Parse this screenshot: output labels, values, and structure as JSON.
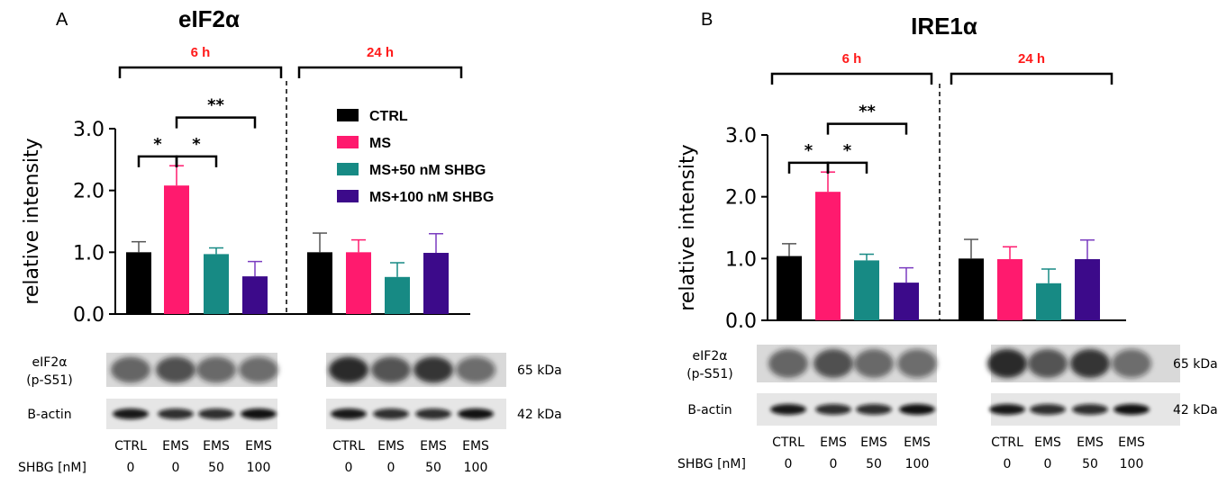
{
  "legend": [
    {
      "label": "CTRL",
      "color": "#000000"
    },
    {
      "label": "MS",
      "color": "#ff1a6e"
    },
    {
      "label": "MS+50 nM SHBG",
      "color": "#178a84"
    },
    {
      "label": "MS+100 nM SHBG",
      "color": "#3c0a8a"
    }
  ],
  "error_colors": [
    "#555555",
    "#ff1a6e",
    "#178a84",
    "#7a3cc0"
  ],
  "time_color": "#ff1a1a",
  "chart_data": [
    {
      "type": "bar",
      "panel_letter": "A",
      "title": "eIF2α",
      "ylabel": "relative intensity",
      "ylim": [
        0,
        3
      ],
      "yticks": [
        "0.0",
        "1.0",
        "2.0",
        "3.0"
      ],
      "groups": [
        "6 h",
        "24 h"
      ],
      "series": [
        {
          "name": "CTRL",
          "values": [
            1.0,
            1.0
          ],
          "errors": [
            0.17,
            0.31
          ]
        },
        {
          "name": "MS",
          "values": [
            2.08,
            1.0
          ],
          "errors": [
            0.32,
            0.2
          ]
        },
        {
          "name": "MS+50 nM SHBG",
          "values": [
            0.97,
            0.6
          ],
          "errors": [
            0.1,
            0.23
          ]
        },
        {
          "name": "MS+100 nM SHBG",
          "values": [
            0.61,
            0.99
          ],
          "errors": [
            0.24,
            0.31
          ]
        }
      ],
      "significance": [
        {
          "from": 0,
          "to": 1,
          "label": "*"
        },
        {
          "from": 1,
          "to": 2,
          "label": "*"
        },
        {
          "from": 1,
          "to": 3,
          "label": "**"
        }
      ],
      "blot": {
        "rows": [
          {
            "label_line1": "eIF2α",
            "label_line2": "(p-S51)",
            "kda": "65 kDa"
          },
          {
            "label_line1": "B-actin",
            "label_line2": "",
            "kda": "42 kDa"
          }
        ],
        "conditions": [
          "CTRL",
          "EMS",
          "EMS",
          "EMS",
          "CTRL",
          "EMS",
          "EMS",
          "EMS"
        ],
        "shbg_label": "SHBG [nM]",
        "shbg_values": [
          "0",
          "0",
          "50",
          "100",
          "0",
          "0",
          "50",
          "100"
        ]
      }
    },
    {
      "type": "bar",
      "panel_letter": "B",
      "title": "IRE1α",
      "ylabel": "relative intensity",
      "ylim": [
        0,
        3
      ],
      "yticks": [
        "0.0",
        "1.0",
        "2.0",
        "3.0"
      ],
      "groups": [
        "6 h",
        "24 h"
      ],
      "series": [
        {
          "name": "CTRL",
          "values": [
            1.04,
            1.0
          ],
          "errors": [
            0.2,
            0.31
          ]
        },
        {
          "name": "MS",
          "values": [
            2.08,
            0.99
          ],
          "errors": [
            0.32,
            0.2
          ]
        },
        {
          "name": "MS+50 nM SHBG",
          "values": [
            0.97,
            0.6
          ],
          "errors": [
            0.1,
            0.23
          ]
        },
        {
          "name": "MS+100 nM SHBG",
          "values": [
            0.61,
            0.99
          ],
          "errors": [
            0.24,
            0.31
          ]
        }
      ],
      "significance": [
        {
          "from": 0,
          "to": 1,
          "label": "*"
        },
        {
          "from": 1,
          "to": 2,
          "label": "*"
        },
        {
          "from": 1,
          "to": 3,
          "label": "**"
        }
      ],
      "blot": {
        "rows": [
          {
            "label_line1": "eIF2α",
            "label_line2": "(p-S51)",
            "kda": "65 kDa"
          },
          {
            "label_line1": "B-actin",
            "label_line2": "",
            "kda": "42 kDa"
          }
        ],
        "conditions": [
          "CTRL",
          "EMS",
          "EMS",
          "EMS",
          "CTRL",
          "EMS",
          "EMS",
          "EMS"
        ],
        "shbg_label": "SHBG [nM]",
        "shbg_values": [
          "0",
          "0",
          "50",
          "100",
          "0",
          "0",
          "50",
          "100"
        ]
      }
    }
  ]
}
